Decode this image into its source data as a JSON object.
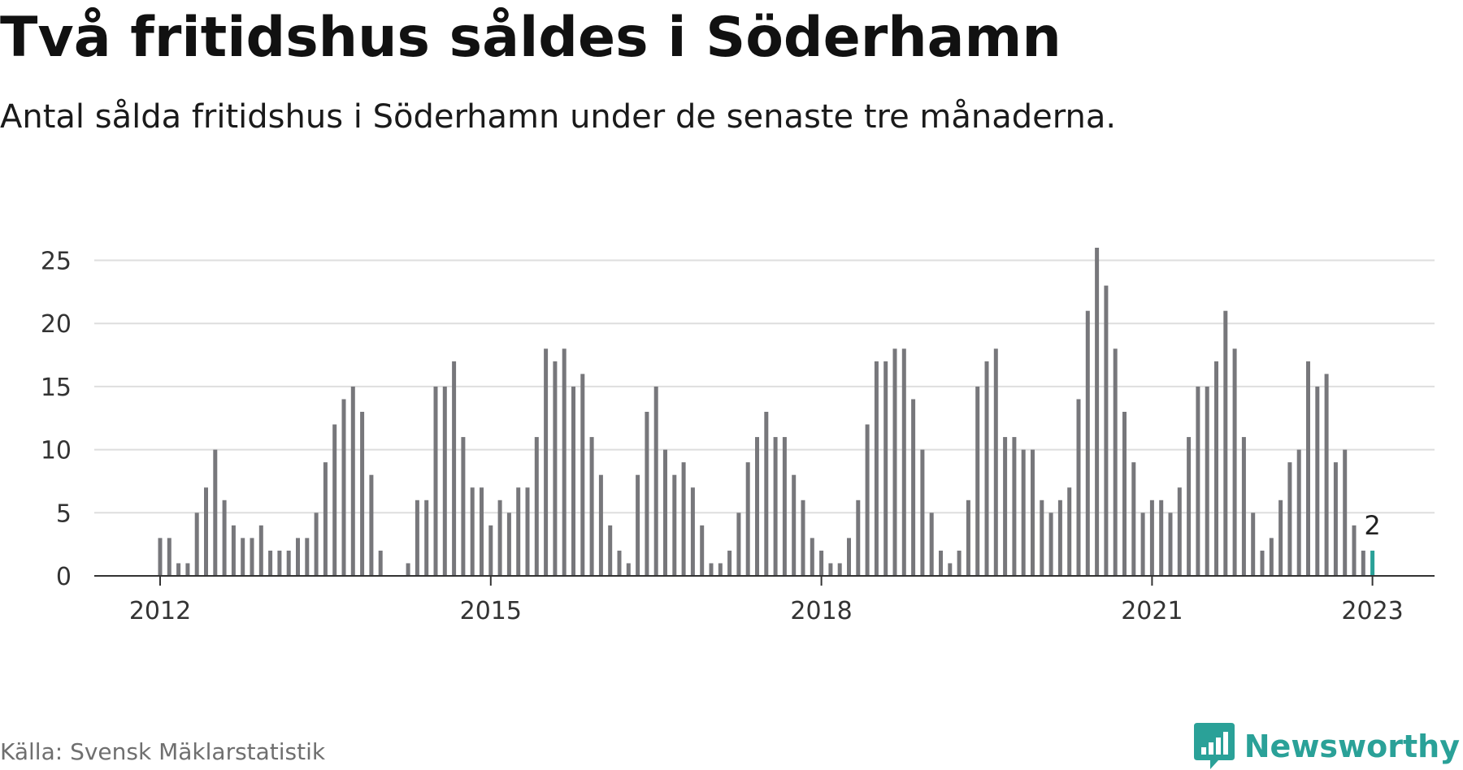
{
  "header": {
    "title": "Två fritidshus såldes i Söderhamn",
    "subtitle": "Antal sålda fritidshus i Söderhamn under de senaste tre månaderna."
  },
  "footer": {
    "source": "Källa: Svensk Mäklarstatistik",
    "brand": "Newsworthy"
  },
  "colors": {
    "bar": "#77777b",
    "highlight": "#2aa198",
    "grid": "#dedede",
    "axis": "#333333",
    "text": "#333333"
  },
  "chart_data": {
    "type": "bar",
    "x_axis": {
      "start_month": "2012-01",
      "end_month": "2023-01",
      "tick_labels": [
        "2012",
        "2015",
        "2018",
        "2021",
        "2023"
      ],
      "tick_months": [
        "2012-01",
        "2015-01",
        "2018-01",
        "2021-01",
        "2023-01"
      ]
    },
    "y_axis": {
      "ylim": [
        0,
        26
      ],
      "ticks": [
        0,
        5,
        10,
        15,
        20,
        25
      ]
    },
    "grid": true,
    "series": [
      {
        "values": [
          3,
          3,
          1,
          1,
          5,
          7,
          10,
          6,
          4,
          3,
          3,
          4,
          2,
          2,
          2,
          3,
          3,
          5,
          9,
          12,
          14,
          15,
          13,
          8,
          2,
          0,
          0,
          1,
          6,
          6,
          15,
          15,
          17,
          11,
          7,
          7,
          4,
          6,
          5,
          7,
          7,
          11,
          18,
          17,
          18,
          15,
          16,
          11,
          8,
          4,
          2,
          1,
          8,
          13,
          15,
          10,
          8,
          9,
          7,
          4,
          1,
          1,
          2,
          5,
          9,
          11,
          13,
          11,
          11,
          8,
          6,
          3,
          2,
          1,
          1,
          3,
          6,
          12,
          17,
          17,
          18,
          18,
          14,
          10,
          5,
          2,
          1,
          2,
          6,
          15,
          17,
          18,
          11,
          11,
          10,
          10,
          6,
          5,
          6,
          7,
          14,
          21,
          26,
          23,
          18,
          13,
          9,
          5,
          6,
          6,
          5,
          7,
          11,
          15,
          15,
          17,
          21,
          18,
          11,
          5,
          2,
          3,
          6,
          9,
          10,
          17,
          15,
          16,
          9,
          10,
          4,
          2,
          2
        ]
      }
    ],
    "highlight": {
      "month": "2023-01",
      "value": 2,
      "label": "2"
    }
  }
}
